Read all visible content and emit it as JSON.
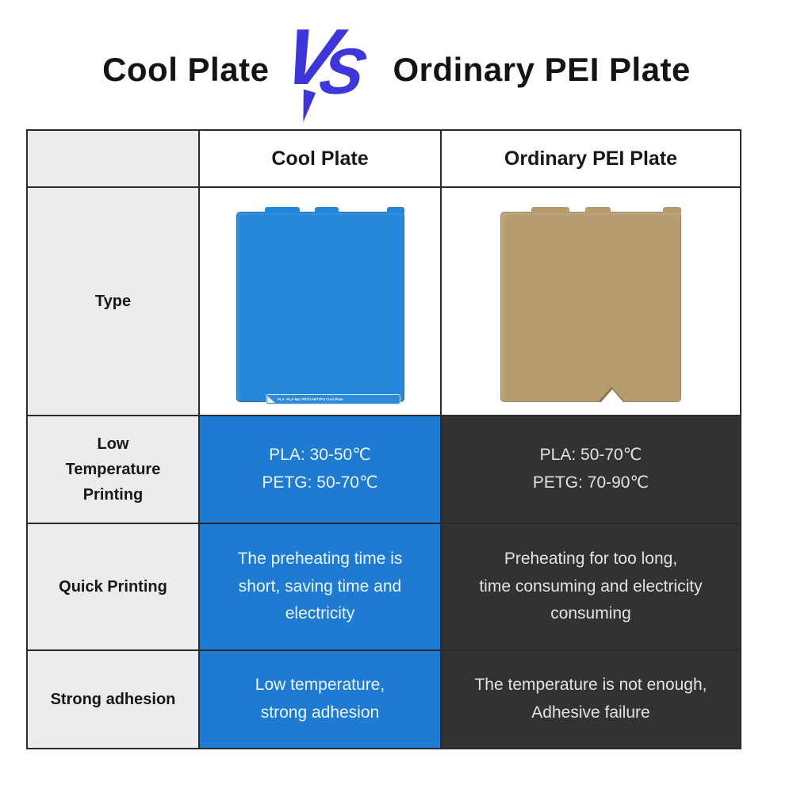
{
  "title": {
    "left": "Cool Plate",
    "vs": {
      "v": "V",
      "s": "S"
    },
    "right": "Ordinary PEI Plate"
  },
  "colors": {
    "vs_blue": "#3d37d9",
    "accent_blue_cell": "#1f7ad2",
    "dark_cell": "#333132",
    "label_cell_gray": "#ececec",
    "table_border": "#2b2b2b",
    "cool_plate_blue": "#2486d8",
    "pei_plate_tan": "#b59b6e"
  },
  "table": {
    "header": {
      "blank": "",
      "cool": "Cool Plate",
      "pei": "Ordinary PEI Plate"
    },
    "type_row": {
      "label": "Type",
      "cool_plate_label": "PLA· PLA-Mtc PETG-HF/TPU Cool Plate"
    },
    "rows": [
      {
        "label_lines": [
          "Low",
          "Temperature",
          "Printing"
        ],
        "cool_lines": [
          "PLA: 30-50℃",
          "PETG: 50-70℃"
        ],
        "pei_lines": [
          "PLA: 50-70℃",
          "PETG: 70-90℃"
        ]
      },
      {
        "label_lines": [
          "Quick Printing"
        ],
        "cool_lines": [
          "The preheating time is",
          "short, saving time and",
          "electricity"
        ],
        "pei_lines": [
          "Preheating for too long,",
          "time consuming and electricity",
          "consuming"
        ]
      },
      {
        "label_lines": [
          "Strong adhesion"
        ],
        "cool_lines": [
          "Low temperature,",
          "strong adhesion"
        ],
        "pei_lines": [
          "The temperature is not enough,",
          "Adhesive failure"
        ]
      }
    ]
  }
}
